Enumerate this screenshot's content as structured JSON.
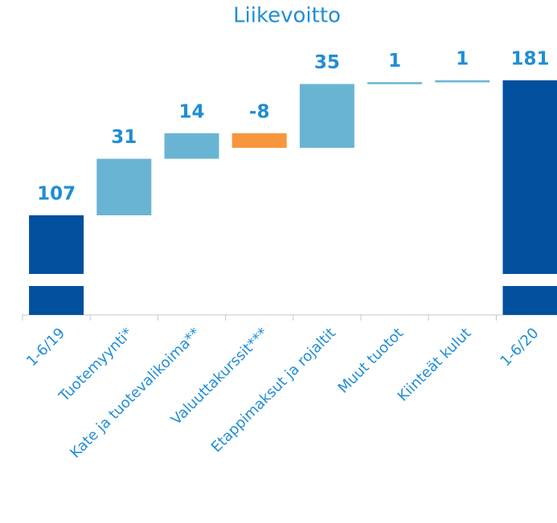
{
  "chart_data": {
    "type": "waterfall",
    "title": "Liikevoitto",
    "categories": [
      "1-6/19",
      "Tuotemyynti*",
      "Kate ja tuotevalikoima**",
      "Valuuttakurssit***",
      "Etappimaksut ja rojaltit",
      "Muut tuotot",
      "Kiinteät kulut",
      "1-6/20"
    ],
    "values": [
      107,
      31,
      14,
      -8,
      35,
      1,
      1,
      181
    ],
    "colors": [
      "#00509e",
      "#6ab4d3",
      "#6ab4d3",
      "#f7963c",
      "#6ab4d3",
      "#6ab4d3",
      "#6ab4d3",
      "#00509e"
    ],
    "axis_break": true
  }
}
